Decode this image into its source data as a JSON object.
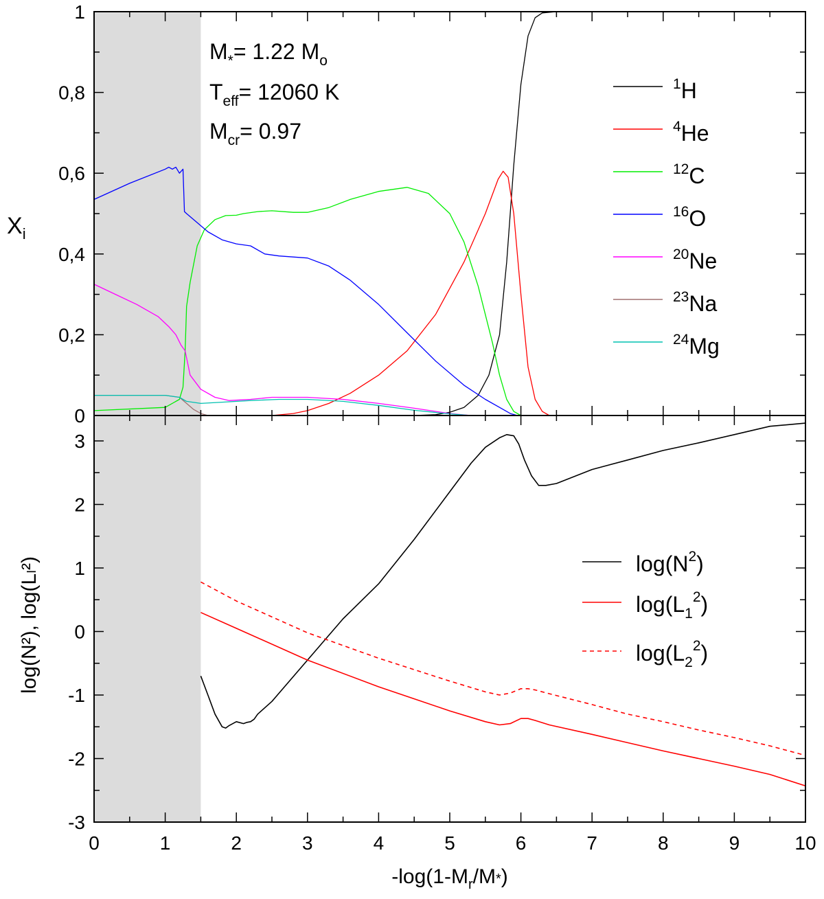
{
  "chart_data": [
    {
      "type": "line",
      "panel": "top",
      "ylabel": "X",
      "ylabel_sub": "i",
      "xlim": [
        0,
        10
      ],
      "ylim": [
        0,
        1
      ],
      "yticks": [
        0,
        0.2,
        0.4,
        0.6,
        0.8,
        1
      ],
      "ytick_labels": [
        "0",
        "0,2",
        "0,4",
        "0,6",
        "0,8",
        "1"
      ],
      "shaded_region": [
        0,
        1.5
      ],
      "annotations": [
        {
          "main": "M",
          "sub": "*",
          "rest": "= 1.22 M",
          "tail_sub": "o"
        },
        {
          "main": "T",
          "sub": "eff",
          "rest": "= 12060 K",
          "tail_sub": ""
        },
        {
          "main": "M",
          "sub": "cr",
          "rest": "= 0.97",
          "tail_sub": ""
        }
      ],
      "legend_position": "right",
      "series": [
        {
          "name": "H",
          "mass_number": "1",
          "color": "#000000",
          "x": [
            0,
            4.5,
            4.8,
            5.0,
            5.2,
            5.4,
            5.55,
            5.7,
            5.8,
            5.9,
            6.0,
            6.1,
            6.2,
            6.3,
            6.5,
            10
          ],
          "y": [
            0,
            0,
            0.002,
            0.008,
            0.02,
            0.05,
            0.1,
            0.2,
            0.38,
            0.62,
            0.82,
            0.94,
            0.985,
            0.997,
            1.0,
            1.0
          ]
        },
        {
          "name": "He",
          "mass_number": "4",
          "color": "#ff0000",
          "x": [
            0,
            2.5,
            2.8,
            3.0,
            3.3,
            3.6,
            4.0,
            4.4,
            4.8,
            5.2,
            5.5,
            5.68,
            5.75,
            5.82,
            5.9,
            6.0,
            6.1,
            6.2,
            6.3,
            6.4,
            10
          ],
          "y": [
            0,
            0,
            0.005,
            0.012,
            0.03,
            0.055,
            0.1,
            0.16,
            0.25,
            0.38,
            0.5,
            0.585,
            0.605,
            0.59,
            0.5,
            0.3,
            0.12,
            0.04,
            0.01,
            0,
            0
          ]
        },
        {
          "name": "C",
          "mass_number": "12",
          "color": "#00ee00",
          "x": [
            0,
            1.0,
            1.2,
            1.25,
            1.28,
            1.3,
            1.35,
            1.45,
            1.55,
            1.7,
            1.85,
            2.0,
            2.1,
            2.3,
            2.5,
            2.8,
            3.0,
            3.3,
            3.6,
            4.0,
            4.4,
            4.7,
            5.0,
            5.2,
            5.4,
            5.6,
            5.7,
            5.8,
            5.9,
            6.0
          ],
          "y": [
            0.012,
            0.02,
            0.04,
            0.07,
            0.16,
            0.27,
            0.33,
            0.42,
            0.46,
            0.485,
            0.495,
            0.496,
            0.5,
            0.505,
            0.507,
            0.503,
            0.503,
            0.515,
            0.535,
            0.555,
            0.565,
            0.55,
            0.5,
            0.43,
            0.32,
            0.18,
            0.1,
            0.04,
            0.01,
            0
          ]
        },
        {
          "name": "O",
          "mass_number": "16",
          "color": "#0000ff",
          "x": [
            0,
            0.5,
            1.0,
            1.05,
            1.1,
            1.15,
            1.2,
            1.25,
            1.27,
            1.3,
            1.4,
            1.6,
            1.8,
            2.0,
            2.2,
            2.4,
            2.6,
            3.0,
            3.3,
            3.6,
            4.0,
            4.4,
            4.8,
            5.2,
            5.5,
            5.7,
            5.85,
            5.95
          ],
          "y": [
            0.535,
            0.575,
            0.61,
            0.615,
            0.61,
            0.615,
            0.6,
            0.61,
            0.505,
            0.5,
            0.485,
            0.455,
            0.435,
            0.425,
            0.42,
            0.4,
            0.395,
            0.39,
            0.37,
            0.335,
            0.275,
            0.205,
            0.135,
            0.075,
            0.04,
            0.02,
            0.005,
            0
          ]
        },
        {
          "name": "Ne",
          "mass_number": "20",
          "color": "#ff00ff",
          "x": [
            0,
            0.3,
            0.6,
            0.9,
            1.05,
            1.15,
            1.22,
            1.28,
            1.35,
            1.5,
            1.7,
            1.9,
            2.2,
            2.5,
            3.0,
            3.5,
            4.0,
            4.5,
            5.0,
            5.3
          ],
          "y": [
            0.325,
            0.3,
            0.275,
            0.245,
            0.22,
            0.2,
            0.175,
            0.16,
            0.1,
            0.065,
            0.045,
            0.037,
            0.04,
            0.045,
            0.045,
            0.04,
            0.03,
            0.018,
            0.005,
            0
          ]
        },
        {
          "name": "Na",
          "mass_number": "23",
          "color": "#a07070",
          "x": [
            0,
            1.0,
            1.2,
            1.3,
            1.4,
            1.5,
            1.6
          ],
          "y": [
            0.05,
            0.05,
            0.045,
            0.03,
            0.015,
            0.005,
            0
          ]
        },
        {
          "name": "Mg",
          "mass_number": "24",
          "color": "#00c0b0",
          "x": [
            0,
            1.0,
            1.2,
            1.3,
            1.5,
            1.8,
            2.2,
            2.6,
            3.0,
            3.5,
            4.0,
            4.5,
            5.0,
            5.3
          ],
          "y": [
            0.05,
            0.05,
            0.045,
            0.035,
            0.03,
            0.033,
            0.037,
            0.04,
            0.04,
            0.035,
            0.025,
            0.013,
            0.004,
            0
          ]
        }
      ]
    },
    {
      "type": "line",
      "panel": "bottom",
      "xlabel": "-log(1-M",
      "xlabel_sub": "r",
      "xlabel_end": "/M",
      "xlabel_sub2": "*",
      "xlabel_close": ")",
      "ylabel": "log(N²), log(Lₗ²)",
      "xlim": [
        0,
        10
      ],
      "ylim": [
        -3,
        3.4
      ],
      "xticks": [
        0,
        1,
        2,
        3,
        4,
        5,
        6,
        7,
        8,
        9,
        10
      ],
      "yticks": [
        -3,
        -2,
        -1,
        0,
        1,
        2,
        3
      ],
      "shaded_region": [
        0,
        1.5
      ],
      "legend_position": "right",
      "series": [
        {
          "name": "log(N",
          "sup": "2",
          "tail": ")",
          "color": "#000000",
          "dash": "",
          "x": [
            1.5,
            1.6,
            1.7,
            1.8,
            1.85,
            1.9,
            2.0,
            2.1,
            2.15,
            2.2,
            2.25,
            2.3,
            2.5,
            3.0,
            3.5,
            4.0,
            4.5,
            5.0,
            5.3,
            5.5,
            5.7,
            5.8,
            5.9,
            5.97,
            6.05,
            6.15,
            6.25,
            6.35,
            6.5,
            7.0,
            7.5,
            8.0,
            8.5,
            9.0,
            9.5,
            10.0
          ],
          "y": [
            -0.7,
            -1.0,
            -1.3,
            -1.5,
            -1.52,
            -1.48,
            -1.42,
            -1.45,
            -1.43,
            -1.42,
            -1.38,
            -1.3,
            -1.1,
            -0.45,
            0.2,
            0.75,
            1.45,
            2.2,
            2.65,
            2.9,
            3.05,
            3.1,
            3.08,
            2.95,
            2.7,
            2.45,
            2.3,
            2.3,
            2.33,
            2.55,
            2.7,
            2.85,
            2.97,
            3.1,
            3.23,
            3.28
          ]
        },
        {
          "name": "log(L",
          "sub": "1",
          "sup": "2",
          "tail": ")",
          "color": "#ff0000",
          "dash": "",
          "x": [
            1.5,
            2.0,
            3.0,
            4.0,
            5.0,
            5.5,
            5.7,
            5.85,
            6.0,
            6.1,
            6.2,
            6.4,
            7.0,
            7.5,
            8.0,
            8.5,
            9.0,
            9.5,
            10.0
          ],
          "y": [
            0.3,
            0.05,
            -0.45,
            -0.87,
            -1.25,
            -1.42,
            -1.47,
            -1.45,
            -1.37,
            -1.37,
            -1.4,
            -1.47,
            -1.62,
            -1.75,
            -1.88,
            -2.0,
            -2.12,
            -2.25,
            -2.43
          ]
        },
        {
          "name": "log(L",
          "sub": "2",
          "sup": "2",
          "tail": ")",
          "color": "#ff0000",
          "dash": "6,5",
          "x": [
            1.5,
            2.0,
            3.0,
            4.0,
            5.0,
            5.5,
            5.7,
            5.85,
            6.0,
            6.1,
            6.2,
            6.4,
            7.0,
            7.5,
            8.0,
            8.5,
            9.0,
            9.5,
            10.0
          ],
          "y": [
            0.78,
            0.48,
            -0.02,
            -0.42,
            -0.78,
            -0.95,
            -1.0,
            -0.97,
            -0.9,
            -0.9,
            -0.92,
            -0.98,
            -1.15,
            -1.3,
            -1.42,
            -1.55,
            -1.67,
            -1.8,
            -1.95
          ]
        }
      ]
    }
  ]
}
